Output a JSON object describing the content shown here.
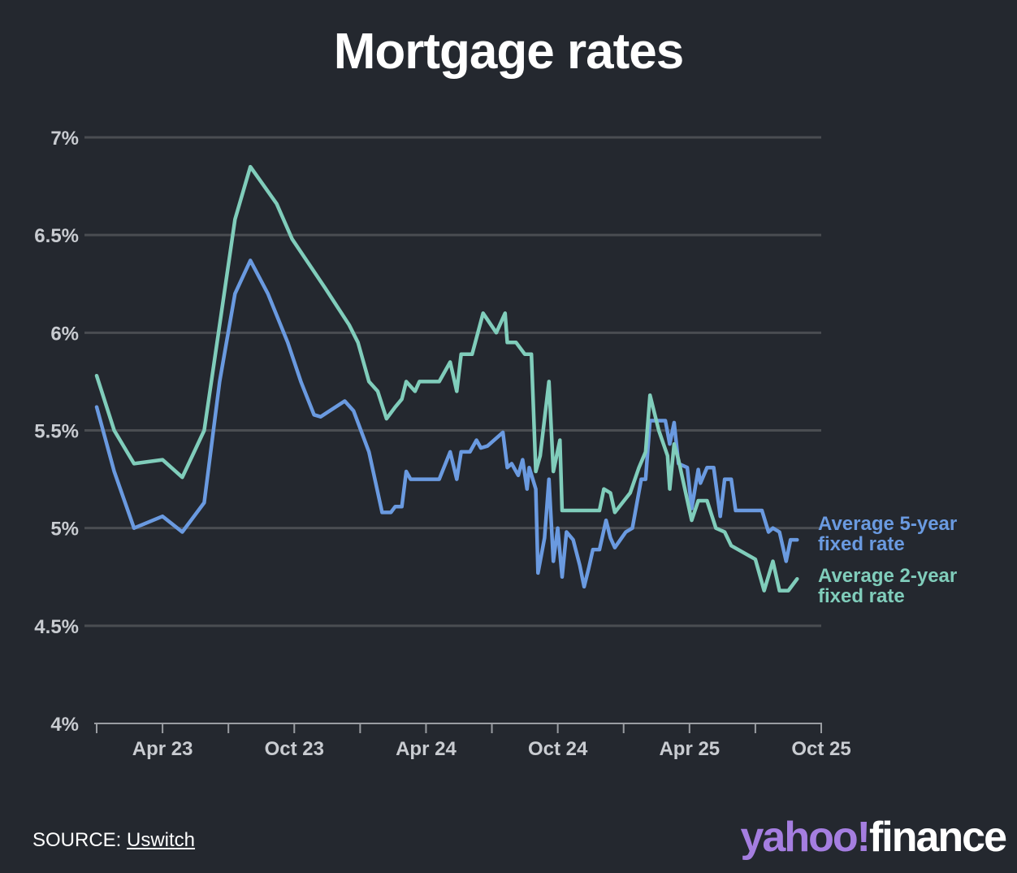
{
  "chart_data": {
    "type": "line",
    "title": "Mortgage rates",
    "xlabel": "",
    "ylabel": "",
    "x_unit": "months since Jan 2023",
    "xlim": [
      0,
      33
    ],
    "ylim": [
      4,
      7
    ],
    "y_ticks": [
      "4%",
      "4.5%",
      "5%",
      "5.5%",
      "6%",
      "6.5%",
      "7%"
    ],
    "y_tick_values": [
      4,
      4.5,
      5,
      5.5,
      6,
      6.5,
      7
    ],
    "x_tick_values": [
      0,
      3,
      6,
      9,
      12,
      15,
      18,
      21,
      24,
      27,
      30,
      33
    ],
    "x_labels": [
      {
        "m": 3,
        "label": "Apr 23"
      },
      {
        "m": 9,
        "label": "Oct 23"
      },
      {
        "m": 15,
        "label": "Apr 24"
      },
      {
        "m": 21,
        "label": "Oct 24"
      },
      {
        "m": 27,
        "label": "Apr 25"
      },
      {
        "m": 33,
        "label": "Oct 25"
      }
    ],
    "grid": true,
    "legend": "right-end labels",
    "series": [
      {
        "name": "Average 5-year fixed rate",
        "line1": "Average 5-year",
        "line2": "fixed rate",
        "color": "#6a9ae0",
        "x": [
          0,
          0.8,
          1.7,
          3.0,
          3.9,
          4.9,
          5.6,
          6.3,
          7.0,
          7.8,
          8.7,
          9.3,
          9.9,
          10.2,
          11.3,
          11.7,
          12.4,
          13.0,
          13.4,
          13.6,
          13.9,
          14.1,
          14.3,
          15.6,
          16.1,
          16.4,
          16.6,
          17.0,
          17.3,
          17.5,
          17.8,
          18.5,
          18.7,
          18.9,
          19.2,
          19.4,
          19.6,
          19.7,
          20.0,
          20.1,
          20.4,
          20.6,
          20.8,
          21.0,
          21.2,
          21.4,
          21.7,
          22.0,
          22.2,
          22.4,
          22.6,
          22.9,
          23.2,
          23.4,
          23.6,
          24.1,
          24.4,
          24.8,
          25.0,
          25.2,
          25.9,
          26.1,
          26.3,
          26.5,
          26.9,
          27.1,
          27.4,
          27.5,
          27.8,
          28.1,
          28.4,
          28.6,
          28.9,
          29.1,
          30.3,
          30.6,
          30.8,
          31.1,
          31.4,
          31.6,
          31.9
        ],
        "values": [
          5.62,
          5.29,
          5.0,
          5.06,
          4.98,
          5.13,
          5.75,
          6.2,
          6.37,
          6.2,
          5.95,
          5.75,
          5.58,
          5.57,
          5.65,
          5.6,
          5.39,
          5.08,
          5.08,
          5.11,
          5.11,
          5.29,
          5.25,
          5.25,
          5.39,
          5.25,
          5.39,
          5.39,
          5.45,
          5.41,
          5.42,
          5.49,
          5.31,
          5.33,
          5.27,
          5.35,
          5.2,
          5.31,
          5.2,
          4.77,
          4.95,
          5.25,
          4.83,
          5.0,
          4.75,
          4.98,
          4.94,
          4.81,
          4.7,
          4.79,
          4.89,
          4.89,
          5.04,
          4.95,
          4.9,
          4.98,
          5.0,
          5.25,
          5.25,
          5.55,
          5.55,
          5.43,
          5.54,
          5.33,
          5.31,
          5.1,
          5.3,
          5.23,
          5.31,
          5.31,
          5.06,
          5.25,
          5.25,
          5.09,
          5.09,
          4.98,
          5.0,
          4.98,
          4.83,
          4.94,
          4.94
        ]
      },
      {
        "name": "Average 2-year fixed rate",
        "line1": "Average 2-year",
        "line2": "fixed rate",
        "color": "#80cdbb",
        "x": [
          0,
          0.8,
          1.7,
          3.0,
          3.9,
          4.9,
          5.6,
          6.3,
          7.0,
          8.2,
          8.9,
          10.4,
          11.5,
          11.9,
          12.4,
          12.8,
          13.2,
          13.6,
          13.9,
          14.1,
          14.5,
          14.7,
          15.6,
          16.1,
          16.4,
          16.6,
          17.1,
          17.6,
          18.2,
          18.6,
          18.7,
          19.1,
          19.5,
          19.8,
          20.0,
          20.2,
          20.6,
          20.8,
          21.1,
          21.2,
          22.9,
          23.1,
          23.4,
          23.6,
          24.3,
          24.7,
          25.0,
          25.2,
          25.6,
          26.0,
          26.1,
          26.3,
          26.5,
          27.1,
          27.4,
          27.8,
          28.2,
          28.6,
          28.9,
          30.0,
          30.4,
          30.8,
          31.1,
          31.5,
          31.9
        ],
        "values": [
          5.78,
          5.5,
          5.33,
          5.35,
          5.26,
          5.5,
          6.04,
          6.58,
          6.85,
          6.66,
          6.48,
          6.23,
          6.04,
          5.95,
          5.75,
          5.7,
          5.56,
          5.62,
          5.66,
          5.75,
          5.7,
          5.75,
          5.75,
          5.85,
          5.7,
          5.89,
          5.89,
          6.1,
          6.0,
          6.1,
          5.95,
          5.95,
          5.89,
          5.89,
          5.29,
          5.37,
          5.75,
          5.29,
          5.45,
          5.09,
          5.09,
          5.2,
          5.18,
          5.08,
          5.18,
          5.31,
          5.39,
          5.68,
          5.5,
          5.37,
          5.2,
          5.43,
          5.35,
          5.04,
          5.14,
          5.14,
          5.0,
          4.98,
          4.91,
          4.84,
          4.68,
          4.83,
          4.68,
          4.68,
          4.74
        ]
      }
    ]
  },
  "footer": {
    "source_label": "SOURCE: ",
    "source_link": "Uswitch",
    "logo_yahoo": "yahoo!",
    "logo_finance": "finance"
  }
}
